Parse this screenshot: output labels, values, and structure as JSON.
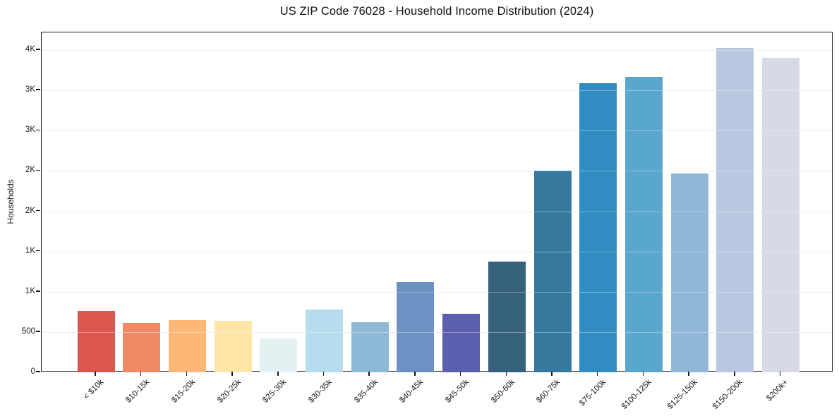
{
  "chart_data": {
    "type": "bar",
    "title": "US ZIP Code 76028 - Household Income Distribution (2024)",
    "xlabel": "",
    "ylabel": "Households",
    "categories": [
      "< $10k",
      "$10-15k",
      "$15-20k",
      "$20-25k",
      "$25-30k",
      "$30-35k",
      "$35-40k",
      "$40-45k",
      "$45-50k",
      "$50-60k",
      "$60-75k",
      "$75-100k",
      "$100-125k",
      "$125-150k",
      "$150-200k",
      "$200k+"
    ],
    "values": [
      765,
      615,
      645,
      640,
      420,
      775,
      620,
      1120,
      730,
      1370,
      2500,
      3590,
      3670,
      2465,
      4025,
      3900
    ],
    "bar_colors": [
      "#da564e",
      "#f08a64",
      "#fdb877",
      "#fde6a6",
      "#e4f1f3",
      "#b6dded",
      "#8db9d6",
      "#6b92c3",
      "#5b5fae",
      "#35617a",
      "#35799e",
      "#318cc2",
      "#5aa7cd",
      "#90b7d8",
      "#b7c8e0",
      "#d7d9e7"
    ],
    "ylim": [
      0,
      4220
    ],
    "yticks": {
      "values": [
        0,
        500,
        1000,
        1500,
        2000,
        2500,
        3000,
        3500,
        4000
      ],
      "labels": [
        "0",
        "500",
        "1K",
        "1K",
        "2K",
        "2K",
        "3K",
        "3K",
        "4K"
      ]
    },
    "grid": "horizontal",
    "legend": "none",
    "axis_color": "#161616",
    "grid_color": "#e7e7e7",
    "background_color": "#ffffff"
  }
}
